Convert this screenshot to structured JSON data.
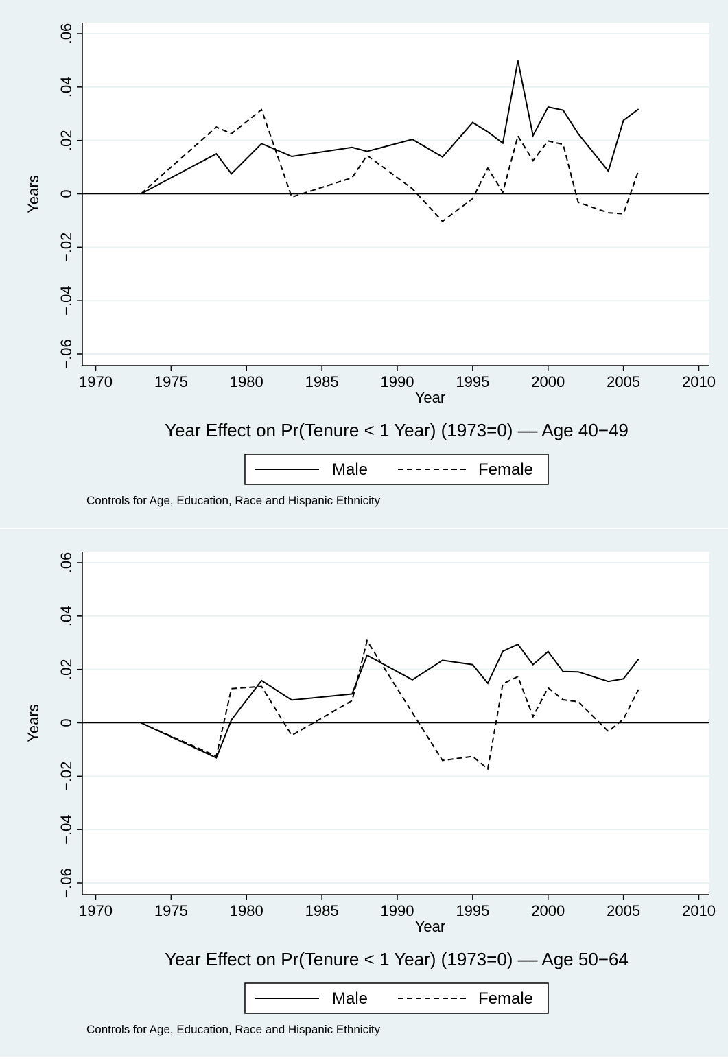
{
  "chart_data": [
    {
      "type": "line",
      "title": "Year Effect on Pr(Tenure < 1 Year) (1973=0) –– Age 40−49",
      "xlabel": "Year",
      "ylabel": "Years",
      "xlim": [
        1970,
        2010
      ],
      "ylim": [
        -0.06,
        0.06
      ],
      "x_ticks": [
        1970,
        1975,
        1980,
        1985,
        1990,
        1995,
        2000,
        2005,
        2010
      ],
      "y_ticks": [
        -0.06,
        -0.04,
        -0.02,
        0,
        0.02,
        0.04,
        0.06
      ],
      "y_tick_labels": [
        "−.06",
        "−.04",
        "−.02",
        "0",
        ".02",
        ".04",
        ".06"
      ],
      "x_tick_labels": [
        "1970",
        "1975",
        "1980",
        "1985",
        "1990",
        "1995",
        "2000",
        "2005",
        "2010"
      ],
      "grid": true,
      "reference_line_y": 0,
      "legend_position": "bottom",
      "note": "Controls for Age, Education, Race and Hispanic Ethnicity",
      "series": [
        {
          "name": "Male",
          "style": "solid",
          "x": [
            1973,
            1978,
            1979,
            1981,
            1983,
            1987,
            1988,
            1991,
            1993,
            1995,
            1996,
            1997,
            1998,
            1999,
            2000,
            2001,
            2002,
            2004,
            2005,
            2006
          ],
          "y": [
            0,
            0.015,
            0.0075,
            0.0188,
            0.014,
            0.0174,
            0.0159,
            0.0204,
            0.0138,
            0.0267,
            0.0232,
            0.019,
            0.0499,
            0.0218,
            0.0325,
            0.0313,
            0.0225,
            0.0085,
            0.0275,
            0.0317
          ]
        },
        {
          "name": "Female",
          "style": "dashed",
          "x": [
            1973,
            1978,
            1979,
            1981,
            1983,
            1987,
            1988,
            1991,
            1993,
            1995,
            1996,
            1997,
            1998,
            1999,
            2000,
            2001,
            2002,
            2004,
            2005,
            2006
          ],
          "y": [
            0,
            0.025,
            0.0225,
            0.0315,
            -0.0012,
            0.006,
            0.0144,
            0.0019,
            -0.0103,
            -0.0018,
            0.0096,
            0.0006,
            0.0217,
            0.0124,
            0.0198,
            0.0185,
            -0.0032,
            -0.0071,
            -0.0075,
            0.0087
          ]
        }
      ]
    },
    {
      "type": "line",
      "title": "Year Effect on Pr(Tenure < 1 Year) (1973=0) –– Age 50−64",
      "xlabel": "Year",
      "ylabel": "Years",
      "xlim": [
        1970,
        2010
      ],
      "ylim": [
        -0.06,
        0.06
      ],
      "x_ticks": [
        1970,
        1975,
        1980,
        1985,
        1990,
        1995,
        2000,
        2005,
        2010
      ],
      "y_ticks": [
        -0.06,
        -0.04,
        -0.02,
        0,
        0.02,
        0.04,
        0.06
      ],
      "y_tick_labels": [
        "−.06",
        "−.04",
        "−.02",
        "0",
        ".02",
        ".04",
        ".06"
      ],
      "x_tick_labels": [
        "1970",
        "1975",
        "1980",
        "1985",
        "1990",
        "1995",
        "2000",
        "2005",
        "2010"
      ],
      "grid": true,
      "reference_line_y": 0,
      "legend_position": "bottom",
      "note": "Controls for Age, Education, Race and Hispanic Ethnicity",
      "series": [
        {
          "name": "Male",
          "style": "solid",
          "x": [
            1973,
            1978,
            1979,
            1981,
            1983,
            1987,
            1988,
            1991,
            1993,
            1995,
            1996,
            1997,
            1998,
            1999,
            2000,
            2001,
            2002,
            2004,
            2005,
            2006
          ],
          "y": [
            0,
            -0.0131,
            0.0011,
            0.0158,
            0.0085,
            0.0108,
            0.0253,
            0.0161,
            0.0234,
            0.0218,
            0.0148,
            0.0268,
            0.0294,
            0.0218,
            0.0267,
            0.0192,
            0.0191,
            0.0155,
            0.0165,
            0.0238
          ]
        },
        {
          "name": "Female",
          "style": "dashed",
          "x": [
            1973,
            1978,
            1979,
            1981,
            1983,
            1987,
            1988,
            1991,
            1993,
            1995,
            1996,
            1997,
            1998,
            1999,
            2000,
            2001,
            2002,
            2004,
            2005,
            2006
          ],
          "y": [
            0,
            -0.0125,
            0.0128,
            0.0136,
            -0.0047,
            0.0083,
            0.0307,
            0.0038,
            -0.0141,
            -0.0126,
            -0.0173,
            0.0146,
            0.0173,
            0.0023,
            0.0131,
            0.0086,
            0.0079,
            -0.0032,
            0.0014,
            0.0125
          ]
        }
      ]
    }
  ]
}
